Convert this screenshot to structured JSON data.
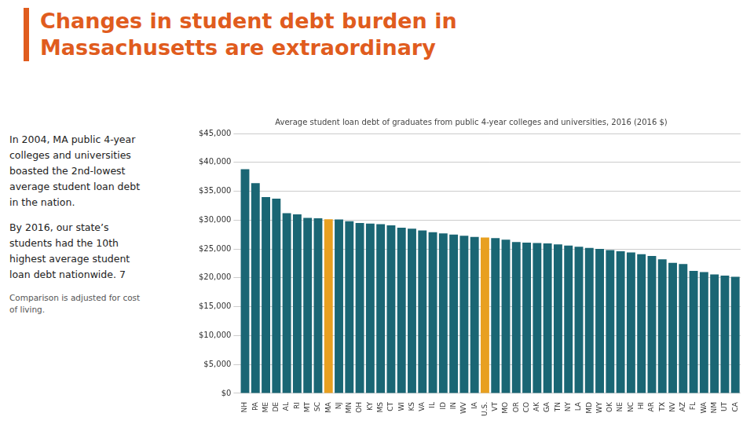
{
  "chart_data": {
    "type": "bar",
    "title": [
      "Changes in student debt burden in",
      "Massachusetts are extraordinary"
    ],
    "title_color": "#e05c1e",
    "subtitle": "Average student loan debt of graduates from public 4-year colleges and universities, 2016 (2016 $)",
    "annotations": [
      [
        "In 2004, MA public 4-year",
        "colleges and universities",
        "boasted the 2nd-lowest",
        "average student loan debt",
        "in the nation."
      ],
      [
        "By 2016, our state’s",
        "students had the 10th",
        "highest average student",
        "loan debt nationwide. 7"
      ],
      [
        "Comparison is adjusted for cost",
        "of living."
      ]
    ],
    "categories": [
      "NH",
      "PA",
      "ME",
      "DE",
      "AL",
      "RI",
      "MT",
      "SC",
      "MA",
      "NJ",
      "MN",
      "OH",
      "KY",
      "MS",
      "CT",
      "WI",
      "KS",
      "VA",
      "IL",
      "ID",
      "IN",
      "WV",
      "IA",
      "U.S.",
      "VT",
      "MO",
      "OR",
      "CO",
      "AK",
      "GA",
      "TN",
      "NY",
      "LA",
      "MD",
      "WY",
      "OK",
      "NE",
      "NC",
      "HI",
      "AR",
      "TX",
      "NV",
      "AZ",
      "FL",
      "WA",
      "NM",
      "UT",
      "CA"
    ],
    "values": [
      38800,
      36400,
      34000,
      33700,
      31200,
      31000,
      30400,
      30300,
      30150,
      30100,
      29800,
      29500,
      29400,
      29300,
      29100,
      28700,
      28500,
      28200,
      27900,
      27700,
      27500,
      27300,
      27100,
      27000,
      26900,
      26600,
      26200,
      26100,
      26050,
      25950,
      25800,
      25600,
      25400,
      25200,
      25000,
      24800,
      24600,
      24400,
      24100,
      23800,
      23200,
      22600,
      22400,
      21200,
      21000,
      20600,
      20400,
      20200
    ],
    "colors": [
      "#1a6674",
      "#1a6674",
      "#1a6674",
      "#1a6674",
      "#1a6674",
      "#1a6674",
      "#1a6674",
      "#1a6674",
      "#e8a020",
      "#1a6674",
      "#1a6674",
      "#1a6674",
      "#1a6674",
      "#1a6674",
      "#1a6674",
      "#1a6674",
      "#1a6674",
      "#1a6674",
      "#1a6674",
      "#1a6674",
      "#1a6674",
      "#1a6674",
      "#1a6674",
      "#e8a020",
      "#1a6674",
      "#1a6674",
      "#1a6674",
      "#1a6674",
      "#1a6674",
      "#1a6674",
      "#1a6674",
      "#1a6674",
      "#1a6674",
      "#1a6674",
      "#1a6674",
      "#1a6674",
      "#1a6674",
      "#1a6674",
      "#1a6674",
      "#1a6674",
      "#1a6674",
      "#1a6674",
      "#1a6674",
      "#1a6674",
      "#1a6674",
      "#1a6674",
      "#1a6674",
      "#1a6674"
    ],
    "ylim": [
      0,
      45000
    ],
    "yticks": [
      {
        "value": 0,
        "label": "$0"
      },
      {
        "value": 5000,
        "label": "$5,000"
      },
      {
        "value": 10000,
        "label": "$10,000"
      },
      {
        "value": 15000,
        "label": "$15,000"
      },
      {
        "value": 20000,
        "label": "$20,000"
      },
      {
        "value": 25000,
        "label": "$25,000"
      },
      {
        "value": 30000,
        "label": "$30,000"
      },
      {
        "value": 35000,
        "label": "$35,000"
      },
      {
        "value": 40000,
        "label": "$40,000"
      },
      {
        "value": 45000,
        "label": "$45,000"
      }
    ],
    "grid": true
  }
}
